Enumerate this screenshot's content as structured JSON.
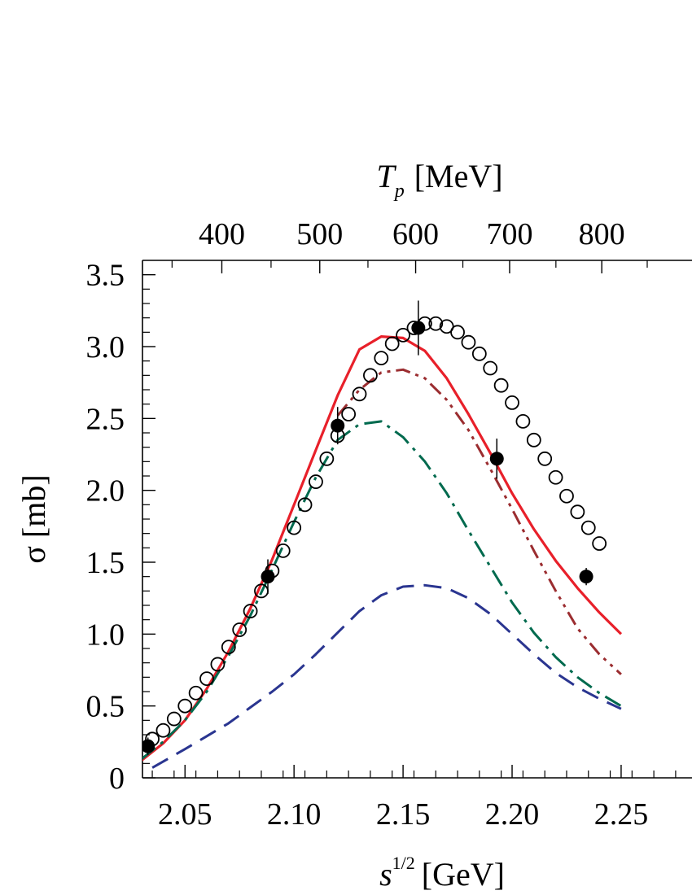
{
  "chart_data": {
    "type": "line",
    "title": "",
    "xlabel": {
      "base": "s",
      "sup": "1/2",
      "unit": "[GeV]"
    },
    "ylabel": {
      "symbol": "σ",
      "unit": "[mb]"
    },
    "top_xlabel": {
      "base": "T",
      "sub": "p",
      "unit": "[MeV]"
    },
    "xlim": [
      2.0305,
      2.2825
    ],
    "ylim": [
      0,
      3.6
    ],
    "x_ticks": [
      2.05,
      2.1,
      2.15,
      2.2,
      2.25
    ],
    "x_tick_labels": [
      "2.05",
      "2.10",
      "2.15",
      "2.20",
      "2.25"
    ],
    "y_ticks": [
      0,
      0.5,
      1.0,
      1.5,
      2.0,
      2.5,
      3.0,
      3.5
    ],
    "y_tick_labels": [
      "0",
      "0.5",
      "1.0",
      "1.5",
      "2.0",
      "2.5",
      "3.0",
      "3.5"
    ],
    "top_ticks_Tp": [
      400,
      500,
      600,
      700,
      800
    ],
    "top_tick_labels": [
      "400",
      "500",
      "600",
      "700",
      "800"
    ],
    "grid": false,
    "legend": "none",
    "series": [
      {
        "style": "solid",
        "color": "#e8202a",
        "x": [
          2.03,
          2.04,
          2.05,
          2.06,
          2.07,
          2.08,
          2.09,
          2.1,
          2.11,
          2.12,
          2.13,
          2.14,
          2.15,
          2.16,
          2.17,
          2.18,
          2.19,
          2.2,
          2.21,
          2.22,
          2.23,
          2.24,
          2.25
        ],
        "y": [
          0.12,
          0.24,
          0.4,
          0.62,
          0.88,
          1.18,
          1.52,
          1.9,
          2.28,
          2.66,
          2.98,
          3.07,
          3.06,
          2.97,
          2.78,
          2.53,
          2.26,
          1.98,
          1.73,
          1.51,
          1.32,
          1.15,
          1.0
        ]
      },
      {
        "style": "dash-dot-dot",
        "color": "#9b2d30",
        "x": [
          2.12,
          2.13,
          2.14,
          2.15,
          2.16,
          2.17,
          2.18,
          2.19,
          2.2,
          2.21,
          2.22,
          2.23,
          2.24,
          2.25
        ],
        "y": [
          2.52,
          2.7,
          2.82,
          2.84,
          2.78,
          2.63,
          2.42,
          2.15,
          1.87,
          1.58,
          1.3,
          1.04,
          0.86,
          0.72
        ]
      },
      {
        "style": "dash-dot",
        "color": "#006a4e",
        "x": [
          2.03,
          2.04,
          2.05,
          2.06,
          2.07,
          2.08,
          2.09,
          2.1,
          2.11,
          2.12,
          2.13,
          2.14,
          2.15,
          2.16,
          2.17,
          2.18,
          2.19,
          2.2,
          2.21,
          2.22,
          2.23,
          2.24,
          2.25
        ],
        "y": [
          0.13,
          0.25,
          0.4,
          0.6,
          0.85,
          1.13,
          1.45,
          1.78,
          2.09,
          2.35,
          2.46,
          2.48,
          2.37,
          2.2,
          1.98,
          1.72,
          1.47,
          1.22,
          1.01,
          0.84,
          0.7,
          0.59,
          0.5
        ]
      },
      {
        "style": "dashed",
        "color": "#2a3590",
        "x": [
          2.035,
          2.05,
          2.06,
          2.07,
          2.08,
          2.09,
          2.1,
          2.11,
          2.12,
          2.13,
          2.14,
          2.15,
          2.16,
          2.17,
          2.18,
          2.19,
          2.2,
          2.21,
          2.22,
          2.23,
          2.24,
          2.25
        ],
        "y": [
          0.07,
          0.2,
          0.29,
          0.38,
          0.49,
          0.6,
          0.72,
          0.86,
          1.01,
          1.16,
          1.27,
          1.33,
          1.34,
          1.32,
          1.25,
          1.14,
          1.0,
          0.86,
          0.73,
          0.63,
          0.55,
          0.48
        ]
      }
    ],
    "open_points": {
      "x": [
        2.035,
        2.04,
        2.045,
        2.05,
        2.055,
        2.06,
        2.065,
        2.07,
        2.075,
        2.08,
        2.085,
        2.09,
        2.095,
        2.1,
        2.105,
        2.11,
        2.115,
        2.12,
        2.125,
        2.13,
        2.135,
        2.14,
        2.145,
        2.15,
        2.155,
        2.16,
        2.165,
        2.17,
        2.175,
        2.18,
        2.185,
        2.19,
        2.195,
        2.2,
        2.205,
        2.21,
        2.215,
        2.22,
        2.225,
        2.23,
        2.235,
        2.24
      ],
      "y": [
        0.27,
        0.33,
        0.41,
        0.5,
        0.59,
        0.69,
        0.79,
        0.91,
        1.03,
        1.16,
        1.3,
        1.44,
        1.58,
        1.74,
        1.9,
        2.06,
        2.22,
        2.38,
        2.53,
        2.67,
        2.8,
        2.92,
        3.02,
        3.08,
        3.13,
        3.16,
        3.16,
        3.14,
        3.1,
        3.03,
        2.95,
        2.85,
        2.73,
        2.61,
        2.48,
        2.35,
        2.22,
        2.09,
        1.96,
        1.85,
        1.74,
        1.63
      ]
    },
    "filled_points": {
      "x": [
        2.033,
        2.088,
        2.12,
        2.157,
        2.193,
        2.234
      ],
      "y": [
        0.22,
        1.4,
        2.45,
        3.13,
        2.22,
        1.4
      ],
      "yerr": [
        0.06,
        0.12,
        0.13,
        0.19,
        0.14,
        0.06
      ]
    }
  }
}
